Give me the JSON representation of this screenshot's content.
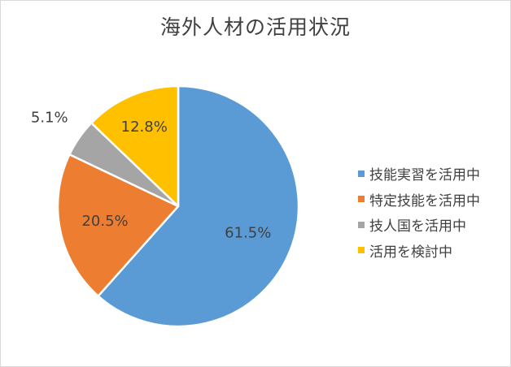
{
  "chart_data": {
    "type": "pie",
    "title": "海外人材の活用状況",
    "categories": [
      "技能実習を活用中",
      "特定技能を活用中",
      "技人国を活用中",
      "活用を検討中"
    ],
    "values": [
      61.5,
      20.5,
      5.1,
      12.8
    ],
    "labels": [
      "61.5%",
      "20.5%",
      "5.1%",
      "12.8%"
    ],
    "colors": [
      "#5b9bd5",
      "#ed7d31",
      "#a5a5a5",
      "#ffc000"
    ],
    "legend_position": "right"
  }
}
